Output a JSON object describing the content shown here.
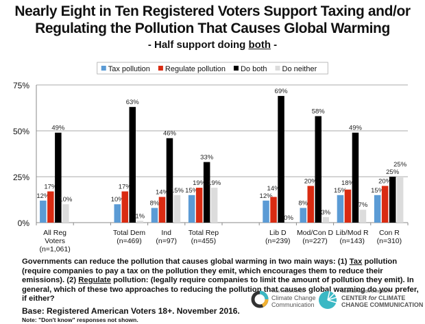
{
  "chart_data": {
    "type": "bar",
    "title": "Nearly Eight in Ten Registered Voters Support Taxing and/or Regulating the Pollution That Causes Global Warming",
    "subtitle_pre": "- Half support doing ",
    "subtitle_em": "both",
    "subtitle_post": " -",
    "categories": [
      [
        "All Reg",
        "Voters",
        "(n=1,061)"
      ],
      [
        "",
        ""
      ],
      [
        "Total Dem",
        "(n=469)"
      ],
      [
        "Ind",
        "(n=97)"
      ],
      [
        "Total Rep",
        "(n=455)"
      ],
      [
        "",
        ""
      ],
      [
        "Lib D",
        "(n=239)"
      ],
      [
        "Mod/Con D",
        "(n=227)"
      ],
      [
        "Lib/Mod R",
        "(n=143)"
      ],
      [
        "Con R",
        "(n=310)"
      ]
    ],
    "series": [
      {
        "name": "Tax pollution",
        "color": "#5b9bd5",
        "values": [
          12,
          null,
          10,
          8,
          15,
          null,
          12,
          8,
          15,
          15
        ]
      },
      {
        "name": "Regulate pollution",
        "color": "#d92b12",
        "values": [
          17,
          null,
          17,
          14,
          19,
          null,
          14,
          20,
          18,
          20
        ]
      },
      {
        "name": "Do both",
        "color": "#000000",
        "values": [
          49,
          null,
          63,
          46,
          33,
          null,
          69,
          58,
          49,
          25
        ]
      },
      {
        "name": "Do neither",
        "color": "#dcdcdc",
        "values": [
          10,
          null,
          1,
          15,
          19,
          null,
          0,
          3,
          7,
          25
        ]
      }
    ],
    "yticks": [
      "0%",
      "25%",
      "50%",
      "75%"
    ],
    "ylim": [
      0,
      75
    ],
    "grid": true,
    "legend": "top"
  },
  "question": {
    "p1": "Governments can reduce the pollution that causes global warming in two main ways: (1) ",
    "tax": "Tax",
    "p2": " pollution (require companies to pay a tax on the pollution they emit, which encourages them to reduce their emissions). (2) ",
    "reg": "Regulate",
    "p3": " pollution: (legally require companies to limit the amount of pollution they emit). In general, which of these two approaches to reducing the pollution that causes global warming do you prefer, if either?"
  },
  "base": "Base: Registered American Voters 18+. November 2016.",
  "note": "Note: \"Don't know\" responses not shown.",
  "logos": {
    "yale_small": "YALE PROGRAM ON",
    "yale": "Climate Change Communication",
    "gmu_small": "GEORGE MASON UNIVERSITY",
    "gmu_pre": "CENTER ",
    "gmu_for": "for",
    "gmu": " CLIMATE CHANGE COMMUNICATION"
  }
}
